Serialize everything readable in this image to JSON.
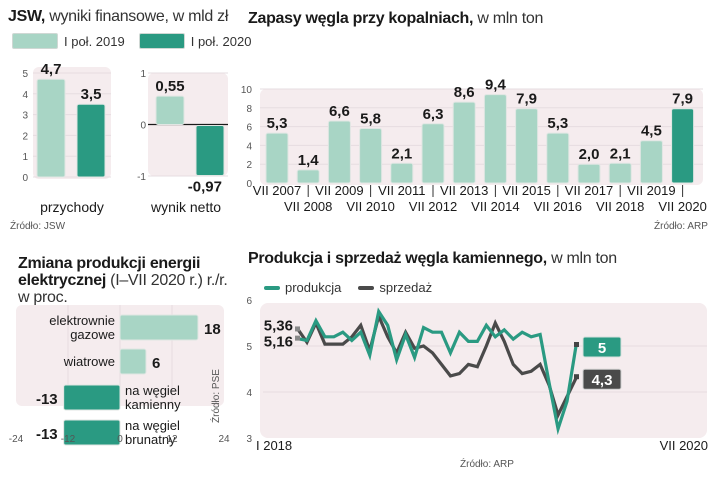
{
  "colors": {
    "light": "#a8d5c5",
    "dark": "#2a9a82",
    "gray": "#4a4a4a",
    "plot_bg": "#f5ecee"
  },
  "panel1": {
    "title_bold": "JSW,",
    "title_rest": " wyniki finansowe, w mld zł",
    "legend": [
      "I poł. 2019",
      "I poł. 2020"
    ],
    "source": "Źródło: JSW"
  },
  "panel2": {
    "title_bold": "Zapasy węgla przy kopalniach,",
    "title_rest": " w mln ton",
    "source": "Źródło: ARP"
  },
  "panel3": {
    "title_line1": "Zmiana produkcji energii",
    "title_line2_bold": "elektrycznej",
    "title_line2_rest": " (I–VII 2020 r.) r./r.",
    "title_line3": "w proc.",
    "source": "Źródło: PSE"
  },
  "panel4": {
    "title_bold": "Produkcja i sprzedaż węgla kamiennego,",
    "title_rest": " w mln ton",
    "legend": [
      "produkcja",
      "sprzedaż"
    ],
    "source": "Źródło: ARP"
  },
  "chart_data": [
    {
      "type": "bar",
      "title": "JSW, wyniki finansowe, w mld zł — przychody",
      "categories": [
        "przychody"
      ],
      "series": [
        {
          "name": "I poł. 2019",
          "values": [
            4.7
          ]
        },
        {
          "name": "I poł. 2020",
          "values": [
            3.5
          ]
        }
      ],
      "value_labels": [
        "4,7",
        "3,5"
      ],
      "xlabel": "przychody",
      "ylim": [
        0,
        5
      ],
      "yticks": [
        "0",
        "1",
        "2",
        "3",
        "4",
        "5"
      ]
    },
    {
      "type": "bar",
      "title": "JSW, wyniki finansowe, w mld zł — wynik netto",
      "categories": [
        "wynik netto"
      ],
      "series": [
        {
          "name": "I poł. 2019",
          "values": [
            0.55
          ]
        },
        {
          "name": "I poł. 2020",
          "values": [
            -0.97
          ]
        }
      ],
      "value_labels": [
        "0,55",
        "-0,97"
      ],
      "xlabel": "wynik netto",
      "ylim": [
        -1,
        1
      ],
      "yticks": [
        "-1",
        "0",
        "1"
      ]
    },
    {
      "type": "bar",
      "title": "Zapasy węgla przy kopalniach, w mln ton",
      "categories": [
        "VII 2007",
        "VII 2008",
        "VII 2009",
        "VII 2010",
        "VII 2011",
        "VII 2012",
        "VII 2013",
        "VII 2014",
        "VII 2015",
        "VII 2016",
        "VII 2017",
        "VII 2018",
        "VII 2019",
        "VII 2020"
      ],
      "values": [
        5.3,
        1.4,
        6.6,
        5.8,
        2.1,
        6.3,
        8.6,
        9.4,
        7.9,
        5.3,
        2.0,
        2.1,
        4.5,
        7.9
      ],
      "value_labels": [
        "5,3",
        "1,4",
        "6,6",
        "5,8",
        "2,1",
        "6,3",
        "8,6",
        "9,4",
        "7,9",
        "5,3",
        "2,0",
        "2,1",
        "4,5",
        "7,9"
      ],
      "highlight_last": true,
      "ylim": [
        0,
        10
      ],
      "yticks": [
        "0",
        "2",
        "4",
        "6",
        "8",
        "10"
      ]
    },
    {
      "type": "bar",
      "orientation": "horizontal",
      "title": "Zmiana produkcji energii elektrycznej (I–VII 2020 r.) r./r. w proc.",
      "categories": [
        [
          "elektrownie",
          "gazowe"
        ],
        [
          "wiatrowe"
        ],
        [
          "na węgiel",
          "kamienny"
        ],
        [
          "na węgiel",
          "brunatny"
        ]
      ],
      "values": [
        18,
        6,
        -13,
        -13
      ],
      "value_labels": [
        "18",
        "6",
        "-13",
        "-13"
      ],
      "xlim": [
        -24,
        24
      ],
      "xticks": [
        "-24",
        "-12",
        "0",
        "12",
        "24"
      ]
    },
    {
      "type": "line",
      "title": "Produkcja i sprzedaż węgla kamiennego, w mln ton",
      "x_start_label": "I 2018",
      "x_end_label": "VII 2020",
      "ylim": [
        3,
        6
      ],
      "yticks": [
        "3",
        "4",
        "5",
        "6"
      ],
      "series": [
        {
          "name": "produkcja",
          "values": [
            5.16,
            5.12,
            5.55,
            5.2,
            5.2,
            5.3,
            5.12,
            5.3,
            4.8,
            5.75,
            5.45,
            4.7,
            5.25,
            4.75,
            5.4,
            5.3,
            5.3,
            4.85,
            5.3,
            5.1,
            5.1,
            5.45,
            5.2,
            5.35,
            5.15,
            5.3,
            5.2,
            5.25,
            4.2,
            3.2,
            3.8,
            5.0
          ],
          "start_label": "5,16",
          "end_label": "5"
        },
        {
          "name": "sprzedaż",
          "values": [
            5.36,
            5.08,
            5.5,
            5.04,
            5.04,
            5.04,
            5.2,
            5.45,
            4.9,
            5.65,
            5.2,
            4.85,
            5.3,
            4.95,
            5.0,
            4.85,
            4.6,
            4.35,
            4.4,
            4.6,
            4.55,
            5.0,
            5.5,
            5.1,
            4.6,
            4.4,
            4.45,
            4.6,
            4.15,
            3.5,
            3.9,
            4.3
          ],
          "start_label": "5,36",
          "end_label": "4,3"
        }
      ]
    }
  ]
}
